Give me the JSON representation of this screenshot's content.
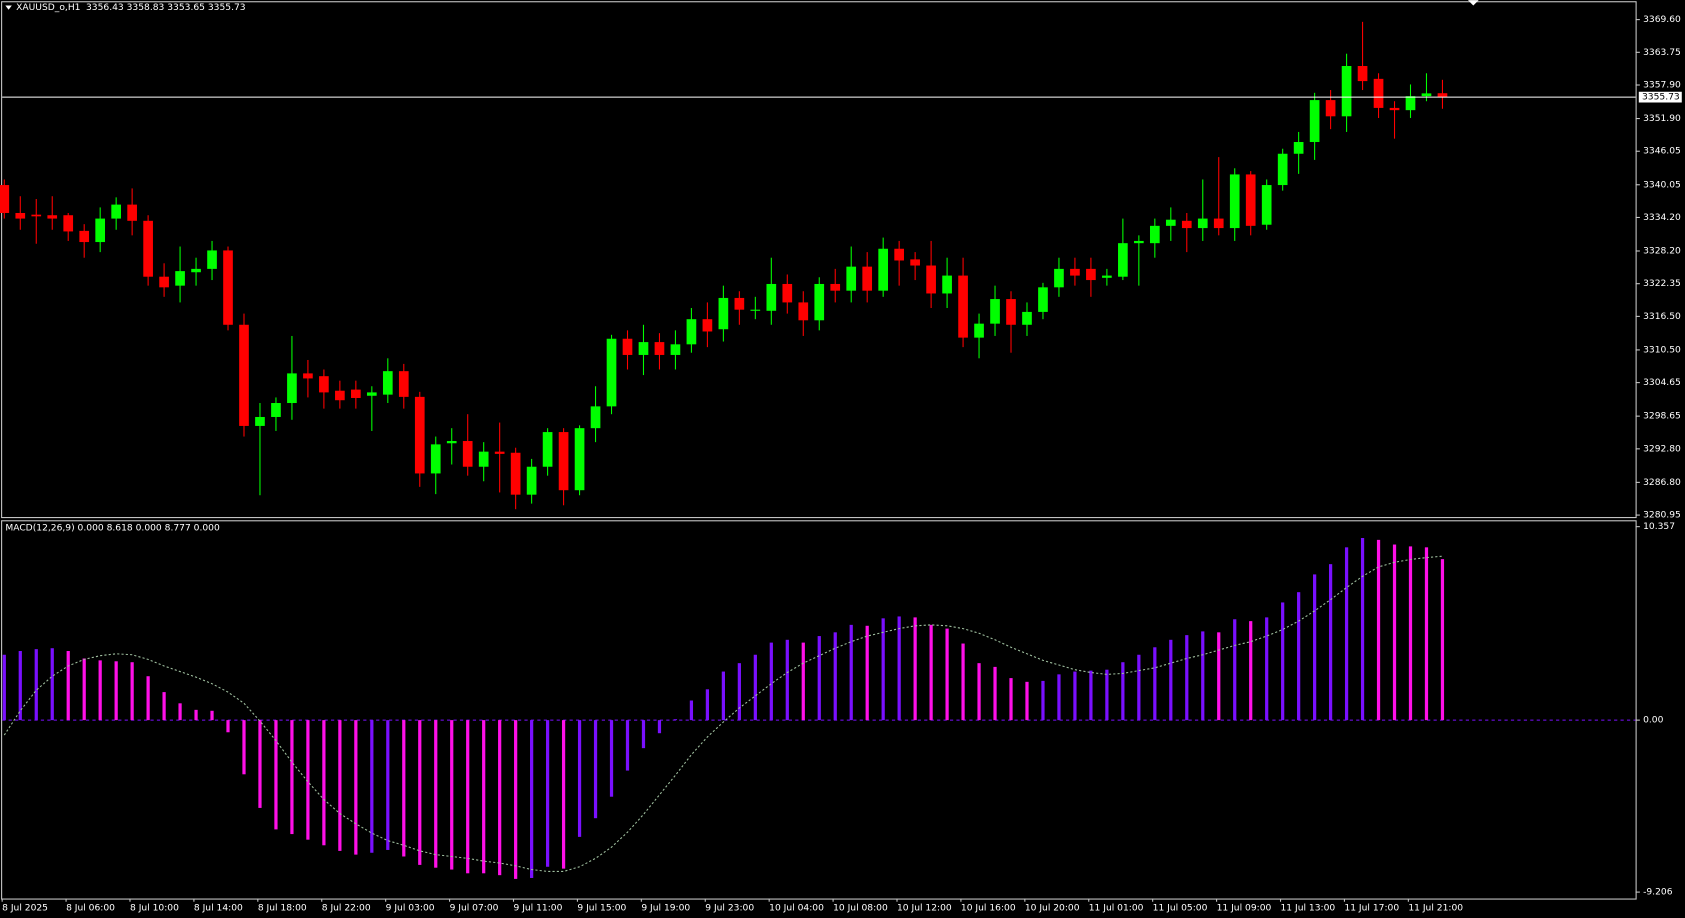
{
  "chart_data": [
    {
      "type": "candlestick",
      "title": "XAUUSD_o,H1",
      "ohlc_text": "3356.43 3358.83 3353.65 3355.73",
      "categories": [
        "8 Jul 2025",
        null,
        null,
        null,
        "8 Jul 06:00",
        null,
        null,
        null,
        "8 Jul 10:00",
        null,
        null,
        null,
        "8 Jul 14:00",
        null,
        null,
        null,
        "8 Jul 18:00",
        null,
        null,
        null,
        "8 Jul 22:00",
        null,
        null,
        null,
        "9 Jul 03:00",
        null,
        null,
        null,
        "9 Jul 07:00",
        null,
        null,
        null,
        "9 Jul 11:00",
        null,
        null,
        null,
        "9 Jul 15:00",
        null,
        null,
        null,
        "9 Jul 19:00",
        null,
        null,
        null,
        "9 Jul 23:00",
        null,
        null,
        null,
        "10 Jul 04:00",
        null,
        null,
        null,
        "10 Jul 08:00",
        null,
        null,
        null,
        "10 Jul 12:00",
        null,
        null,
        null,
        "10 Jul 16:00",
        null,
        null,
        null,
        "10 Jul 20:00",
        null,
        null,
        null,
        "11 Jul 01:00",
        null,
        null,
        null,
        "11 Jul 05:00",
        null,
        null,
        null,
        "11 Jul 09:00",
        null,
        null,
        null,
        "11 Jul 13:00",
        null,
        null,
        null,
        "11 Jul 17:00",
        null,
        null,
        null,
        "11 Jul 21:00",
        null,
        null
      ],
      "open": [
        3340,
        3335,
        3334.7,
        3334.6,
        3334.6,
        3331.8,
        3329.8,
        3334,
        3336.5,
        3333.6,
        3323.6,
        3322,
        3324.4,
        3325,
        3328.3,
        3315,
        3296.9,
        3298.5,
        3301,
        3306.3,
        3305.8,
        3303.2,
        3303.4,
        3302.3,
        3302.5,
        3306.7,
        3302.1,
        3288.4,
        3293.8,
        3294.2,
        3289.6,
        3292.3,
        3292.1,
        3284.6,
        3289.6,
        3295.8,
        3285.4,
        3296.5,
        3300.4,
        3312.5,
        3309.6,
        3311.9,
        3309.6,
        3311.5,
        3316,
        3314.2,
        3319.8,
        3317.5,
        3317.5,
        3322.3,
        3319,
        3315.8,
        3322.3,
        3321.1,
        3325.4,
        3321.1,
        3328.6,
        3326.7,
        3325.6,
        3320.6,
        3323.8,
        3312.7,
        3315.2,
        3319.6,
        3315,
        3317.3,
        3321.7,
        3325,
        3325,
        3323.4,
        3323.6,
        3329.6,
        3329.6,
        3332.7,
        3333.6,
        3332.3,
        3334,
        3332.3,
        3341.9,
        3332.9,
        3340,
        3345.6,
        3347.7,
        3355.2,
        3352.3,
        3361.3,
        3359,
        3353.8,
        3353.4,
        3355.9,
        3356.43
      ],
      "high": [
        3341,
        3338,
        3337.5,
        3338,
        3335,
        3333,
        3336,
        3337.8,
        3339.4,
        3334.6,
        3326,
        3329,
        3327,
        3330,
        3329,
        3317,
        3301,
        3302,
        3313,
        3308.7,
        3307,
        3305,
        3305,
        3304,
        3309,
        3308,
        3303,
        3295,
        3296.5,
        3299,
        3294,
        3297.5,
        3293,
        3291,
        3296.5,
        3296.5,
        3297,
        3304,
        3313.2,
        3314,
        3315,
        3313.5,
        3314,
        3318,
        3319,
        3322,
        3321,
        3320,
        3327,
        3324,
        3321,
        3323.5,
        3325,
        3329,
        3328,
        3330.6,
        3330,
        3328,
        3330,
        3327,
        3327,
        3317,
        3322,
        3321,
        3319,
        3322.5,
        3327,
        3327,
        3327,
        3325,
        3334,
        3331,
        3334,
        3336,
        3335,
        3341,
        3345,
        3343,
        3342.5,
        3341,
        3346.5,
        3349.5,
        3356.5,
        3357,
        3363.5,
        3369.2,
        3360,
        3355,
        3358,
        3360,
        3358.83
      ],
      "low": [
        3334,
        3332,
        3329.5,
        3332,
        3330,
        3327,
        3328,
        3332,
        3331,
        3322,
        3320,
        3319,
        3322,
        3323,
        3314,
        3295,
        3284.5,
        3296,
        3298,
        3302,
        3300,
        3300,
        3300,
        3296,
        3301,
        3300,
        3286,
        3284.7,
        3290,
        3288,
        3287,
        3285,
        3282,
        3283,
        3288,
        3282.7,
        3284.5,
        3294,
        3299,
        3307,
        3306,
        3307,
        3307,
        3310,
        3311,
        3312,
        3315,
        3316,
        3315,
        3317,
        3313,
        3314,
        3319,
        3319,
        3319,
        3320,
        3322,
        3323,
        3318,
        3318,
        3311,
        3309,
        3313,
        3310,
        3313,
        3316,
        3320,
        3322,
        3320,
        3322,
        3323,
        3322,
        3327,
        3330,
        3328,
        3330,
        3331,
        3330,
        3331,
        3332,
        3339,
        3342,
        3344.5,
        3350,
        3349.5,
        3357,
        3352,
        3348.3,
        3352,
        3355,
        3353.65
      ],
      "close": [
        3335,
        3334,
        3334.4,
        3334,
        3331.7,
        3329.8,
        3334,
        3336.5,
        3333.6,
        3323.6,
        3321.7,
        3324.6,
        3325,
        3328.3,
        3315,
        3296.9,
        3298.5,
        3301,
        3306.3,
        3305.4,
        3302.9,
        3301.5,
        3301.9,
        3302.9,
        3306.7,
        3302.1,
        3288.4,
        3293.6,
        3294.2,
        3289.6,
        3292.3,
        3291.9,
        3284.6,
        3289.6,
        3295.8,
        3285.4,
        3296.5,
        3300.4,
        3312.5,
        3309.6,
        3311.9,
        3309.6,
        3311.5,
        3316,
        3313.8,
        3319.8,
        3317.7,
        3317.7,
        3322.3,
        3319,
        3315.8,
        3322.3,
        3321.1,
        3325.4,
        3321.1,
        3328.6,
        3326.5,
        3325.6,
        3320.6,
        3323.8,
        3312.7,
        3315.2,
        3319.6,
        3315,
        3317.3,
        3321.7,
        3325,
        3323.8,
        3323,
        3323.8,
        3329.6,
        3330,
        3332.7,
        3333.8,
        3332.3,
        3334,
        3332.3,
        3341.9,
        3332.7,
        3340,
        3345.6,
        3347.7,
        3355.2,
        3352.3,
        3361.3,
        3358.6,
        3353.8,
        3353.4,
        3355.9,
        3356.4,
        3355.73
      ],
      "up_color": "#00ff00",
      "down_color": "#ff0000",
      "current_price": 3355.73,
      "ylim": [
        3280.6,
        3372.7
      ],
      "yticks": [
        {
          "value": 3369.6,
          "label": "3369.60"
        },
        {
          "value": 3363.75,
          "label": "3363.75"
        },
        {
          "value": 3357.9,
          "label": "3357.90"
        },
        {
          "value": 3351.9,
          "label": "3351.90"
        },
        {
          "value": 3346.05,
          "label": "3346.05"
        },
        {
          "value": 3340.05,
          "label": "3340.05"
        },
        {
          "value": 3334.2,
          "label": "3334.20"
        },
        {
          "value": 3328.2,
          "label": "3328.20"
        },
        {
          "value": 3322.35,
          "label": "3322.35"
        },
        {
          "value": 3316.5,
          "label": "3316.50"
        },
        {
          "value": 3310.5,
          "label": "3310.50"
        },
        {
          "value": 3304.65,
          "label": "3304.65"
        },
        {
          "value": 3298.65,
          "label": "3298.65"
        },
        {
          "value": 3292.8,
          "label": "3292.80"
        },
        {
          "value": 3286.8,
          "label": "3286.80"
        },
        {
          "value": 3280.95,
          "label": "3280.95"
        }
      ]
    },
    {
      "type": "macd",
      "title": "MACD(12,26,9) 0.000 8.618 0.000 8.777 0.000",
      "values": [
        3.5,
        3.7,
        3.8,
        3.85,
        3.7,
        3.3,
        3.2,
        3.15,
        3.1,
        2.35,
        1.5,
        0.9,
        0.55,
        0.5,
        -0.65,
        -2.9,
        -4.7,
        -5.85,
        -6.1,
        -6.4,
        -6.7,
        -7.0,
        -7.2,
        -7.1,
        -6.95,
        -7.3,
        -7.75,
        -7.9,
        -8.0,
        -8.2,
        -8.2,
        -8.3,
        -8.5,
        -8.45,
        -7.85,
        -7.95,
        -6.25,
        -5.25,
        -4.1,
        -2.7,
        -1.5,
        -0.7,
        0.05,
        1.05,
        1.65,
        2.6,
        3.05,
        3.5,
        4.15,
        4.3,
        4.15,
        4.5,
        4.7,
        5.1,
        5.05,
        5.45,
        5.55,
        5.5,
        5.1,
        4.9,
        4.1,
        3.05,
        2.85,
        2.25,
        2.05,
        2.1,
        2.45,
        2.6,
        2.65,
        2.7,
        3.1,
        3.5,
        3.9,
        4.3,
        4.55,
        4.75,
        4.7,
        5.4,
        5.3,
        5.5,
        6.3,
        6.85,
        7.8,
        8.35,
        9.25,
        9.75,
        9.65,
        9.4,
        9.3,
        9.25,
        8.618
      ],
      "signal": [
        -0.8,
        0.5,
        1.6,
        2.35,
        2.9,
        3.25,
        3.45,
        3.55,
        3.5,
        3.25,
        2.9,
        2.6,
        2.3,
        1.95,
        1.5,
        0.9,
        -0.05,
        -1.1,
        -2.25,
        -3.3,
        -4.25,
        -5.0,
        -5.55,
        -6.05,
        -6.45,
        -6.7,
        -7.0,
        -7.2,
        -7.3,
        -7.4,
        -7.55,
        -7.65,
        -7.8,
        -8.0,
        -8.1,
        -8.1,
        -7.85,
        -7.4,
        -6.8,
        -6.0,
        -5.05,
        -4.0,
        -2.95,
        -1.85,
        -0.9,
        -0.1,
        0.65,
        1.3,
        1.95,
        2.55,
        3.05,
        3.45,
        3.85,
        4.2,
        4.5,
        4.7,
        4.9,
        5.05,
        5.1,
        5.05,
        4.9,
        4.65,
        4.3,
        3.9,
        3.55,
        3.2,
        2.95,
        2.7,
        2.55,
        2.45,
        2.5,
        2.65,
        2.8,
        3.05,
        3.3,
        3.5,
        3.75,
        4.0,
        4.2,
        4.5,
        4.85,
        5.3,
        5.85,
        6.45,
        7.1,
        7.7,
        8.2,
        8.45,
        8.6,
        8.7,
        8.777
      ],
      "rise_color": "#7a10ff",
      "fall_color": "#ff10e8",
      "signal_color": "#9fbf9f",
      "ylim": [
        -9.55,
        10.7
      ],
      "yticks": [
        10.357,
        {
          "value": 0,
          "label": "0.00"
        },
        -9.206
      ]
    }
  ]
}
